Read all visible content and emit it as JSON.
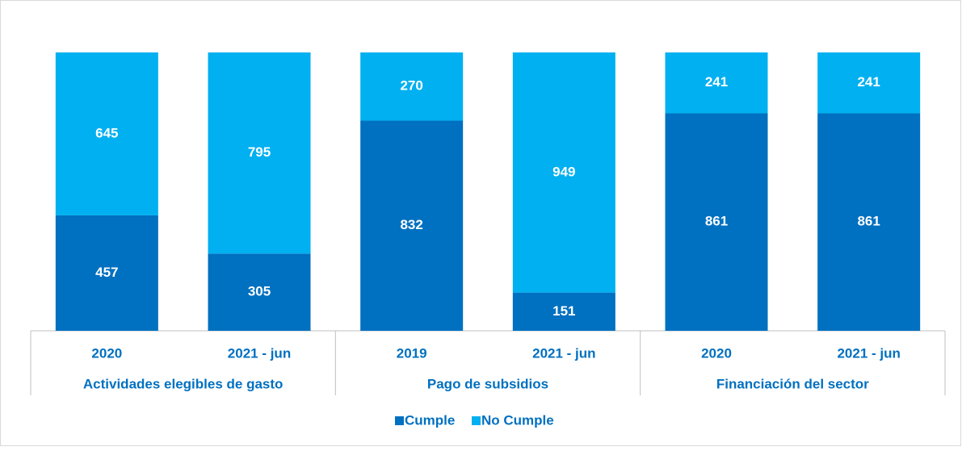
{
  "chart_data": {
    "type": "bar",
    "stacking": "percent",
    "groups": [
      {
        "name": "Actividades elegibles de gasto",
        "categories": [
          "2020",
          "2021 - jun"
        ]
      },
      {
        "name": "Pago de subsidios",
        "categories": [
          "2019",
          "2021 - jun"
        ]
      },
      {
        "name": "Financiación del sector",
        "categories": [
          "2020",
          "2021 - jun"
        ]
      }
    ],
    "series": [
      {
        "name": "Cumple",
        "color": "#0070c0",
        "values": [
          457,
          305,
          832,
          151,
          861,
          861
        ]
      },
      {
        "name": "No Cumple",
        "color": "#00b0f0",
        "values": [
          645,
          795,
          270,
          949,
          241,
          241
        ]
      }
    ],
    "legend": "bottom"
  }
}
